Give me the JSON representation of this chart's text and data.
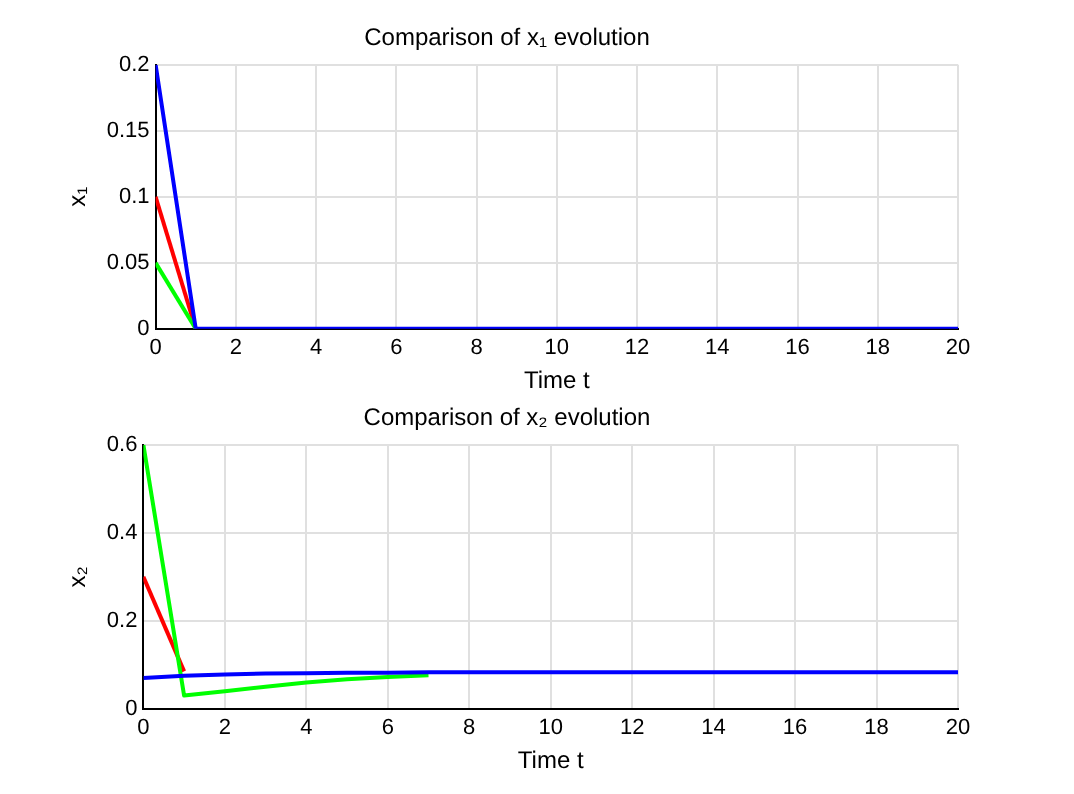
{
  "chart_data": [
    {
      "type": "line",
      "title": "Comparison of x₁ evolution",
      "xlabel": "Time t",
      "ylabel": "x₁",
      "x": [
        0,
        1,
        2,
        3,
        4,
        5,
        6,
        7,
        8,
        9,
        10,
        11,
        12,
        13,
        14,
        15,
        16,
        17,
        18,
        19,
        20
      ],
      "series": [
        {
          "color": "#ff0000",
          "values": [
            0.1,
            0,
            null,
            null,
            null,
            null,
            null,
            null,
            null,
            null,
            null,
            null,
            null,
            null,
            null,
            null,
            null,
            null,
            null,
            null,
            null
          ]
        },
        {
          "color": "#00ff00",
          "values": [
            0.05,
            0,
            null,
            null,
            null,
            null,
            null,
            null,
            null,
            null,
            null,
            null,
            null,
            null,
            null,
            null,
            null,
            null,
            null,
            null,
            null
          ]
        },
        {
          "color": "#0000ff",
          "values": [
            0.2,
            0,
            0,
            0,
            0,
            0,
            0,
            0,
            0,
            0,
            0,
            0,
            0,
            0,
            0,
            0,
            0,
            0,
            0,
            0,
            0
          ]
        }
      ],
      "xlim": [
        0,
        20
      ],
      "xticks": [
        0,
        2,
        4,
        6,
        8,
        10,
        12,
        14,
        16,
        18,
        20
      ],
      "ylim": [
        0,
        0.2
      ],
      "yticks": [
        0,
        0.05,
        0.1,
        0.15,
        0.2
      ],
      "grid": true,
      "legend": false,
      "marker": "none",
      "line_style": "solid"
    },
    {
      "type": "line",
      "title": "Comparison of x₂ evolution",
      "xlabel": "Time t",
      "ylabel": "x₂",
      "x": [
        0,
        1,
        2,
        3,
        4,
        5,
        6,
        7,
        8,
        9,
        10,
        11,
        12,
        13,
        14,
        15,
        16,
        17,
        18,
        19,
        20
      ],
      "series": [
        {
          "color": "#ff0000",
          "values": [
            0.3,
            0.085,
            null,
            null,
            null,
            null,
            null,
            null,
            null,
            null,
            null,
            null,
            null,
            null,
            null,
            null,
            null,
            null,
            null,
            null,
            null
          ]
        },
        {
          "color": "#00ff00",
          "values": [
            0.6,
            0.03,
            0.04,
            0.05,
            0.06,
            0.067,
            0.072,
            0.076,
            null,
            null,
            null,
            null,
            null,
            null,
            null,
            null,
            null,
            null,
            null,
            null,
            null
          ]
        },
        {
          "color": "#0000ff",
          "values": [
            0.07,
            0.075,
            0.078,
            0.08,
            0.081,
            0.082,
            0.082,
            0.083,
            0.083,
            0.083,
            0.083,
            0.083,
            0.083,
            0.083,
            0.083,
            0.083,
            0.083,
            0.083,
            0.083,
            0.083,
            0.083
          ]
        }
      ],
      "xlim": [
        0,
        20
      ],
      "xticks": [
        0,
        2,
        4,
        6,
        8,
        10,
        12,
        14,
        16,
        18,
        20
      ],
      "ylim": [
        0,
        0.6
      ],
      "yticks": [
        0,
        0.2,
        0.4,
        0.6
      ],
      "grid": true,
      "legend": false,
      "marker": "none",
      "line_style": "solid"
    }
  ]
}
